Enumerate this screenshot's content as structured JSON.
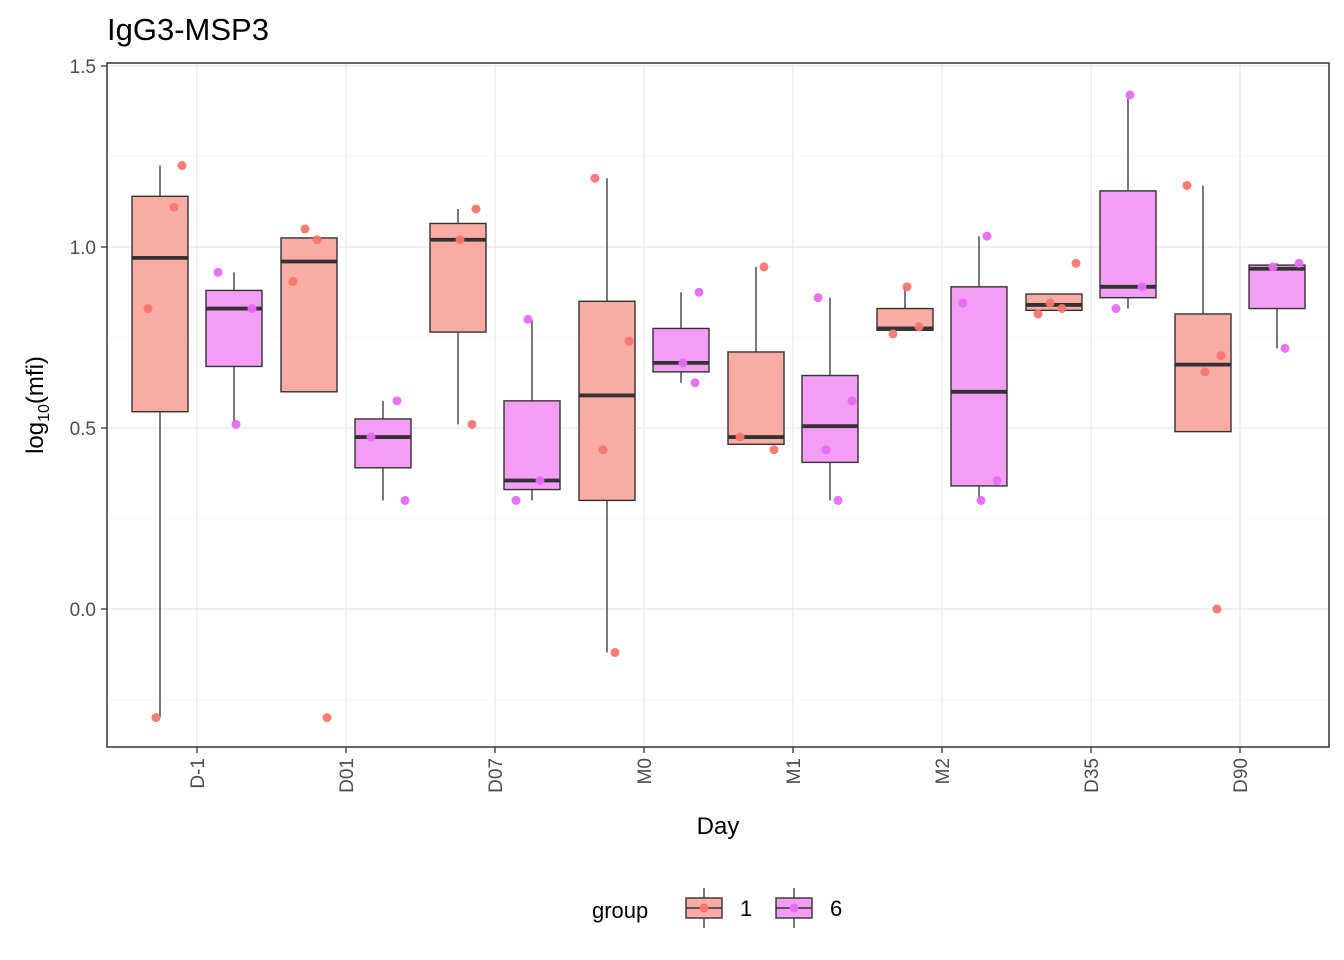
{
  "chart_data": {
    "type": "box",
    "title": "IgG3-MSP3",
    "xlabel": "Day",
    "ylabel": "log10(mfi)",
    "ylim": [
      -0.38,
      1.52
    ],
    "yticks": [
      0.0,
      0.5,
      1.0,
      1.5
    ],
    "yticklabels": [
      "0.0",
      "0.5",
      "1.0",
      "1.5"
    ],
    "categories": [
      "D-1",
      "D01",
      "D07",
      "M0",
      "M1",
      "M2",
      "D35",
      "D90"
    ],
    "grid": true,
    "legend": {
      "title": "group",
      "position": "bottom",
      "entries": [
        {
          "label": "1",
          "color": "#f8766d",
          "fill": "#f9aca4"
        },
        {
          "label": "6",
          "color": "#e76bf3",
          "fill": "#f39df5"
        }
      ]
    },
    "series": [
      {
        "name": "1",
        "color": "#f8766d",
        "fill": "#f9aca4",
        "boxes": [
          {
            "category": "D-1",
            "min": -0.3,
            "q1": 0.545,
            "median": 0.97,
            "q3": 1.14,
            "max": 1.225
          },
          {
            "category": "D01",
            "min": null,
            "q1": 0.6,
            "median": 0.96,
            "q3": 1.025,
            "max": null
          },
          {
            "category": "D07",
            "min": 0.51,
            "q1": 0.765,
            "median": 1.02,
            "q3": 1.065,
            "max": 1.105
          },
          {
            "category": "M0",
            "min": -0.12,
            "q1": 0.3,
            "median": 0.59,
            "q3": 0.85,
            "max": 1.19
          },
          {
            "category": "M1",
            "min": null,
            "q1": 0.455,
            "median": 0.475,
            "q3": 0.71,
            "max": 0.945
          },
          {
            "category": "M2",
            "min": null,
            "q1": 0.77,
            "median": 0.775,
            "q3": 0.83,
            "max": 0.89
          },
          {
            "category": "D35",
            "min": null,
            "q1": 0.825,
            "median": 0.84,
            "q3": 0.87,
            "max": null
          },
          {
            "category": "D90",
            "min": null,
            "q1": 0.49,
            "median": 0.675,
            "q3": 0.815,
            "max": 1.17
          }
        ],
        "points": [
          {
            "category": "D-1",
            "values": [
              1.11,
              0.83,
              1.225,
              -0.3
            ]
          },
          {
            "category": "D01",
            "values": [
              1.05,
              1.02,
              0.905,
              -0.3
            ]
          },
          {
            "category": "D07",
            "values": [
              1.105,
              1.02,
              0.51
            ]
          },
          {
            "category": "M0",
            "values": [
              1.19,
              0.74,
              0.44,
              -0.12
            ]
          },
          {
            "category": "M1",
            "values": [
              0.945,
              0.475,
              0.44
            ]
          },
          {
            "category": "M2",
            "values": [
              0.89,
              0.78,
              0.76
            ]
          },
          {
            "category": "D35",
            "values": [
              0.955,
              0.845,
              0.83,
              0.815
            ]
          },
          {
            "category": "D90",
            "values": [
              1.17,
              0.7,
              0.655,
              0.0
            ]
          }
        ]
      },
      {
        "name": "6",
        "color": "#e76bf3",
        "fill": "#f39df5",
        "boxes": [
          {
            "category": "D-1",
            "min": 0.51,
            "q1": 0.67,
            "median": 0.83,
            "q3": 0.88,
            "max": 0.93
          },
          {
            "category": "D01",
            "min": 0.3,
            "q1": 0.39,
            "median": 0.475,
            "q3": 0.525,
            "max": 0.575
          },
          {
            "category": "D07",
            "min": 0.3,
            "q1": 0.33,
            "median": 0.355,
            "q3": 0.575,
            "max": 0.8
          },
          {
            "category": "M0",
            "min": 0.625,
            "q1": 0.655,
            "median": 0.68,
            "q3": 0.775,
            "max": 0.875
          },
          {
            "category": "M1",
            "min": 0.3,
            "q1": 0.405,
            "median": 0.505,
            "q3": 0.645,
            "max": 0.86
          },
          {
            "category": "M2",
            "min": 0.3,
            "q1": 0.34,
            "median": 0.6,
            "q3": 0.89,
            "max": 1.03
          },
          {
            "category": "D35",
            "min": 0.83,
            "q1": 0.86,
            "median": 0.89,
            "q3": 1.155,
            "max": 1.42
          },
          {
            "category": "D90",
            "min": 0.72,
            "q1": 0.83,
            "median": 0.94,
            "q3": 0.95,
            "max": 0.955
          }
        ],
        "points": [
          {
            "category": "D-1",
            "values": [
              0.93,
              0.83,
              0.51
            ]
          },
          {
            "category": "D01",
            "values": [
              0.575,
              0.475,
              0.3
            ]
          },
          {
            "category": "D07",
            "values": [
              0.8,
              0.355,
              0.3
            ]
          },
          {
            "category": "M0",
            "values": [
              0.875,
              0.68,
              0.625
            ]
          },
          {
            "category": "M1",
            "values": [
              0.86,
              0.575,
              0.44,
              0.3
            ]
          },
          {
            "category": "M2",
            "values": [
              1.03,
              0.845,
              0.355,
              0.3
            ]
          },
          {
            "category": "D35",
            "values": [
              1.42,
              0.89,
              0.83
            ]
          },
          {
            "category": "D90",
            "values": [
              0.955,
              0.945,
              0.72
            ]
          }
        ]
      }
    ]
  }
}
